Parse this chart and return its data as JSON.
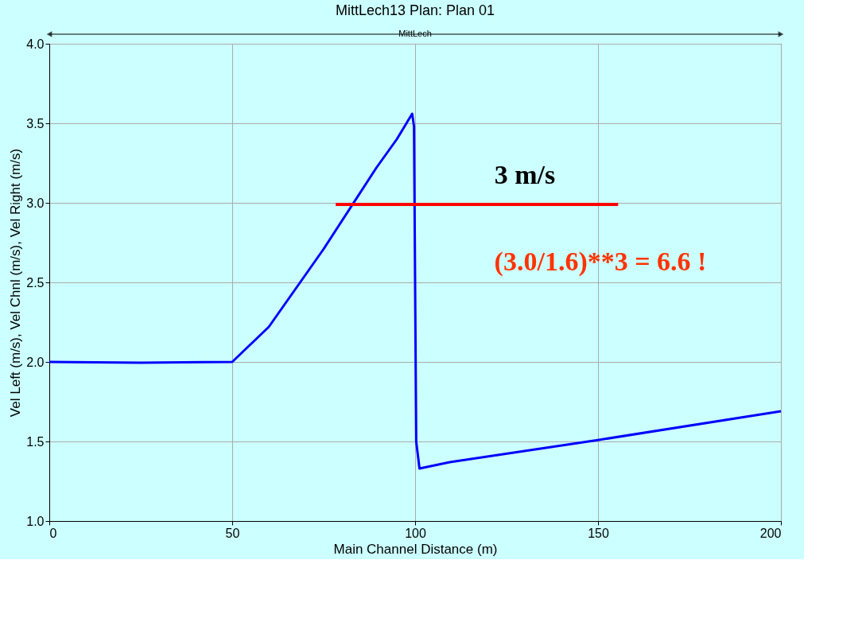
{
  "chart_data": {
    "type": "line",
    "title": "MittLech13       Plan: Plan 01",
    "xlabel": "Main Channel Distance (m)",
    "ylabel": "Vel Left (m/s), Vel Chnl (m/s), Vel Right (m/s)",
    "series": [
      {
        "color": "#0000ff",
        "x": [
          0,
          25,
          50,
          60,
          75,
          89.4,
          95,
          99.2,
          99.7,
          100.3,
          101.2,
          109.5,
          150.3,
          200
        ],
        "values": [
          2.0,
          1.995,
          2.0,
          2.22,
          2.71,
          3.22,
          3.4,
          3.56,
          3.48,
          1.5,
          1.33,
          1.37,
          1.51,
          1.69
        ]
      },
      {
        "color": "#ff0000",
        "x": [
          78.3,
          155.5
        ],
        "values": [
          2.99,
          2.99
        ]
      }
    ],
    "annotations": [
      "MittLech",
      "3 m/s",
      "(3.0/1.6)**3 = 6.6 !"
    ],
    "xlim": [
      0,
      200
    ],
    "xticks": [
      0,
      50,
      100,
      150,
      200
    ],
    "ylim": [
      1.0,
      4.0
    ],
    "yticks": [
      {
        "value": 1.0,
        "label": "1.0"
      },
      {
        "value": 1.5,
        "label": "1.5"
      },
      {
        "value": 2.0,
        "label": "2.0"
      },
      {
        "value": 2.5,
        "label": "2.5"
      },
      {
        "value": 3.0,
        "label": "3.0"
      },
      {
        "value": 3.5,
        "label": "3.5"
      },
      {
        "value": 4.0,
        "label": "4.0"
      }
    ],
    "grid": true,
    "marker": "none",
    "line_style": "solid"
  }
}
